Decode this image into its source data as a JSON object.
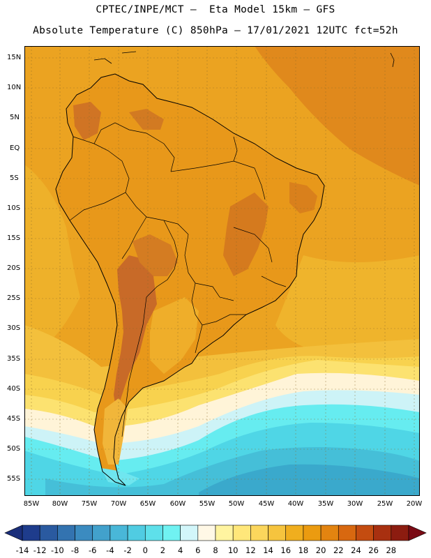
{
  "header": {
    "line1": "CPTEC/INPE/MCT —  Eta Model 15km — GFS",
    "line2": "Absolute Temperature (C) 850hPa — 17/01/2021 12UTC fct=52h"
  },
  "axes": {
    "lat_ticks": [
      "15N",
      "10N",
      "5N",
      "EQ",
      "5S",
      "10S",
      "15S",
      "20S",
      "25S",
      "30S",
      "35S",
      "40S",
      "45S",
      "50S",
      "55S"
    ],
    "lon_ticks": [
      "85W",
      "80W",
      "75W",
      "70W",
      "65W",
      "60W",
      "55W",
      "50W",
      "45W",
      "40W",
      "35W",
      "30W",
      "25W",
      "20W"
    ]
  },
  "colorbar": {
    "labels": [
      "-14",
      "-12",
      "-10",
      "-8",
      "-6",
      "-4",
      "-2",
      "0",
      "2",
      "4",
      "6",
      "8",
      "10",
      "12",
      "14",
      "16",
      "18",
      "20",
      "22",
      "24",
      "26",
      "28"
    ],
    "colors": [
      "#1e3c8c",
      "#2a5aa0",
      "#3373b0",
      "#3b8bc0",
      "#42a1cc",
      "#49b7d8",
      "#50cce2",
      "#5ee0ea",
      "#70f2f2",
      "#d2f6fa",
      "#fff8e6",
      "#fff4a0",
      "#ffe77a",
      "#fbd65c",
      "#f6c43e",
      "#f0ae1e",
      "#eb9b10",
      "#e38410",
      "#d86810",
      "#c44c10",
      "#a83010",
      "#8c1c10"
    ],
    "low_end_color": "#1a2e7a",
    "high_end_color": "#7a0a14"
  },
  "map": {
    "ocean_color": "#eba321",
    "land_color": "#e89a16",
    "warm_color": "#d07a22",
    "hot_color": "#c0652a",
    "coast_color": "#000000"
  }
}
